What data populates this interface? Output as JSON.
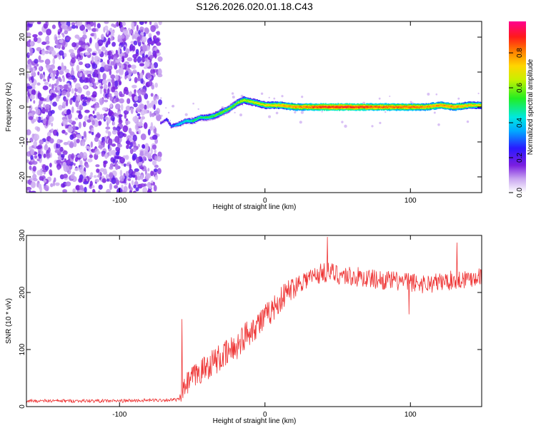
{
  "title": "S126.2026.020.01.18.C43",
  "chart_data": [
    {
      "type": "heatmap",
      "title": "S126.2026.020.01.18.C43",
      "xlabel": "Height of straight line (km)",
      "ylabel": "Frequency (Hz)",
      "xlim": [
        -164,
        149
      ],
      "ylim": [
        -24.5,
        24.5
      ],
      "xticks": [
        -100,
        0,
        100
      ],
      "yticks": [
        -20,
        -10,
        0,
        10,
        20
      ],
      "colorbar": {
        "label": "Normalized spectral amplitude",
        "range": [
          0,
          0.98
        ],
        "ticks": [
          "0.0",
          "0.2",
          "0.4",
          "0.6",
          "0.8"
        ],
        "colormap": "rainbow (purple-blue-cyan-green-yellow-orange-red-magenta)"
      },
      "noise_region": {
        "x_from": -164,
        "x_to": -72,
        "freq_range": [
          -24.5,
          24.5
        ],
        "amplitude_range": [
          0.0,
          0.3
        ]
      },
      "signal_track": {
        "height_km": [
          -72,
          -68,
          -65,
          -60,
          -55,
          -50,
          -45,
          -40,
          -35,
          -30,
          -25,
          -20,
          -15,
          -10,
          -5,
          0,
          10,
          20,
          40,
          60,
          80,
          100,
          110,
          120,
          130,
          140,
          149
        ],
        "freq_hz": [
          -4.5,
          -3.5,
          -5.5,
          -5.0,
          -4.0,
          -4.0,
          -3.0,
          -3.0,
          -2.5,
          -1.5,
          -0.5,
          1.0,
          2.0,
          1.5,
          1.0,
          0.5,
          0.5,
          0.0,
          0.0,
          0.0,
          0.0,
          0.0,
          0.0,
          0.5,
          0.0,
          0.5,
          0.5
        ],
        "amplitude": [
          0.2,
          0.25,
          0.3,
          0.4,
          0.45,
          0.5,
          0.5,
          0.55,
          0.55,
          0.6,
          0.6,
          0.6,
          0.65,
          0.65,
          0.7,
          0.7,
          0.75,
          0.8,
          0.9,
          0.9,
          0.85,
          0.85,
          0.8,
          0.8,
          0.8,
          0.75,
          0.7
        ]
      }
    },
    {
      "type": "line",
      "xlabel": "Height of straight line (km)",
      "ylabel": "SNR (10 * v/v)",
      "xlim": [
        -164,
        149
      ],
      "ylim": [
        0,
        300
      ],
      "xticks": [
        -100,
        0,
        100
      ],
      "yticks": [
        0,
        100,
        200,
        300
      ],
      "color": "#ee3333",
      "series": [
        {
          "name": "SNR",
          "x": [
            -164,
            -140,
            -120,
            -100,
            -80,
            -60,
            -58,
            -55,
            -50,
            -45,
            -40,
            -35,
            -30,
            -25,
            -20,
            -15,
            -10,
            -5,
            0,
            5,
            10,
            15,
            20,
            25,
            30,
            35,
            40,
            45,
            50,
            60,
            70,
            80,
            90,
            100,
            110,
            120,
            130,
            140,
            149
          ],
          "y": [
            10,
            10,
            10,
            10,
            11,
            12,
            15,
            35,
            50,
            60,
            70,
            80,
            85,
            95,
            105,
            120,
            135,
            145,
            155,
            170,
            185,
            200,
            210,
            220,
            225,
            230,
            235,
            235,
            232,
            228,
            225,
            222,
            220,
            218,
            215,
            218,
            222,
            225,
            230
          ],
          "noise_amplitude": [
            3,
            3,
            3,
            3,
            3,
            3,
            8,
            20,
            22,
            22,
            24,
            24,
            25,
            25,
            25,
            25,
            25,
            25,
            25,
            22,
            22,
            22,
            20,
            18,
            18,
            18,
            18,
            18,
            18,
            18,
            17,
            17,
            17,
            17,
            17,
            17,
            17,
            17,
            17
          ],
          "spikes": [
            {
              "x": -57,
              "y": 153
            },
            {
              "x": 43,
              "y": 297
            },
            {
              "x": 132,
              "y": 287
            },
            {
              "x": 99,
              "y": 162
            }
          ]
        }
      ]
    }
  ]
}
